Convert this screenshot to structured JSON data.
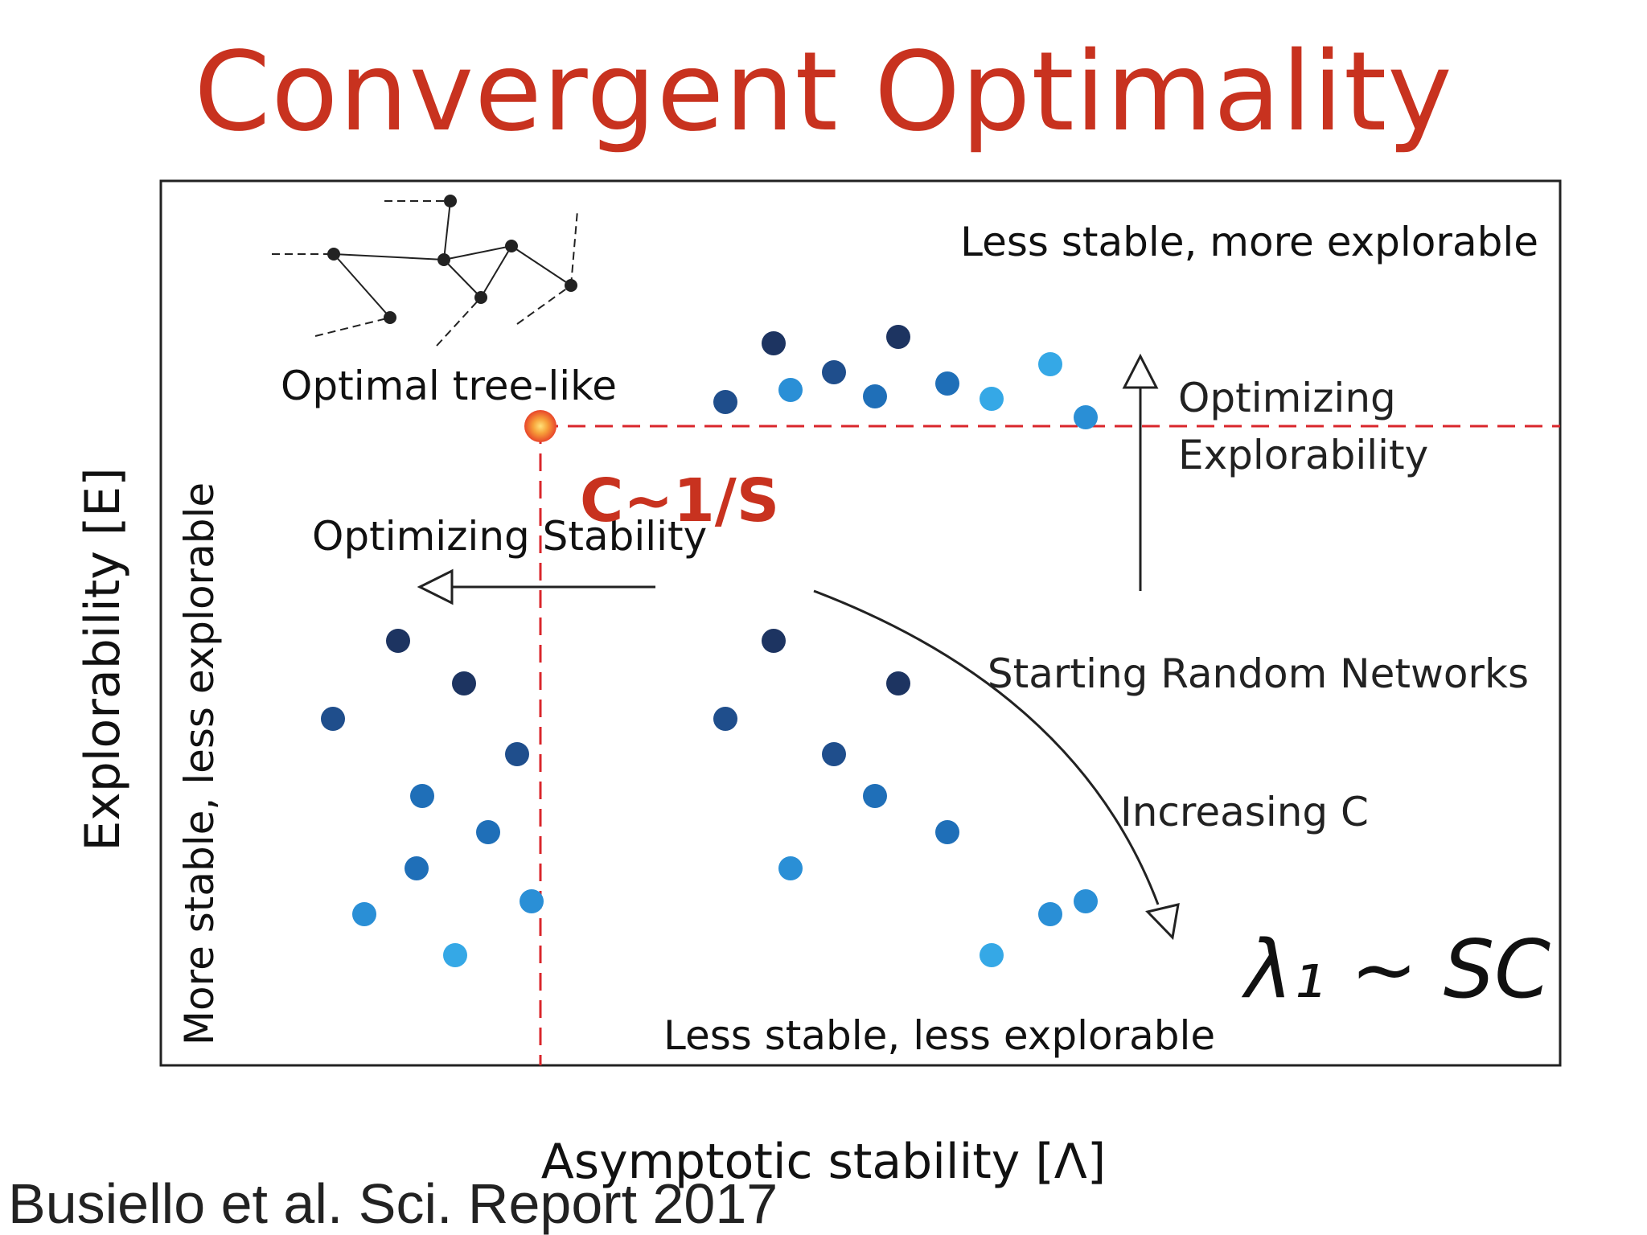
{
  "slide": {
    "title": "Convergent Optimality",
    "citation": "Busiello et al. Sci. Report 2017"
  },
  "axes": {
    "y_label": "Explorability [E]",
    "x_label": "Asymptotic stability [Λ]"
  },
  "labels": {
    "top_right": "Less stable, more explorable",
    "left_vertical": "More stable, less explorable",
    "bottom": "Less stable, less explorable",
    "optimal": "Optimal tree-like",
    "optimizing_stability": "Optimizing Stability",
    "optimizing_explorability_1": "Optimizing",
    "optimizing_explorability_2": "Explorability",
    "starting_random": "Starting Random Networks",
    "increasing_c": "Increasing C",
    "relation": "C~1/S",
    "formula": "λ₁ ~ SC"
  },
  "colors": {
    "title": "#c8321f",
    "dashed_line": "#d9262b",
    "optimal_point": "#f05a28",
    "blue_dark": "#1d3461",
    "blue_mid_dark": "#1f4e8c",
    "blue_mid": "#1f6fb8",
    "blue_light": "#2a8fd6",
    "blue_lightest": "#35a8e6"
  },
  "icons": {
    "tree_network": "tree-network-icon",
    "optimal_point": "glowing-dot-icon"
  }
}
